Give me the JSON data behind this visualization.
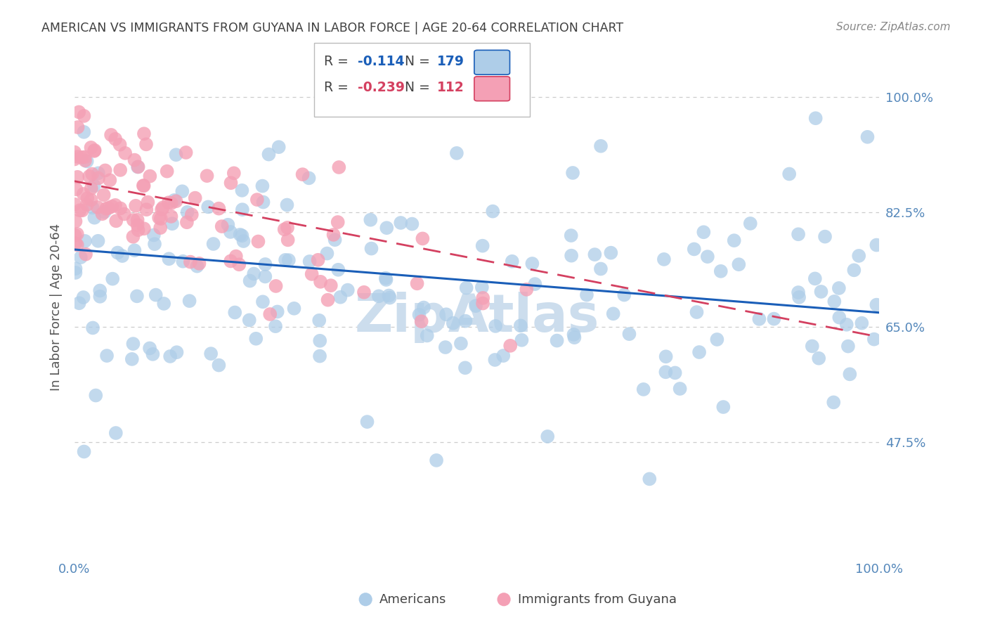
{
  "title": "AMERICAN VS IMMIGRANTS FROM GUYANA IN LABOR FORCE | AGE 20-64 CORRELATION CHART",
  "source": "Source: ZipAtlas.com",
  "ylabel": "In Labor Force | Age 20-64",
  "xlim": [
    0.0,
    1.0
  ],
  "ylim": [
    0.3,
    1.06
  ],
  "yticks": [
    0.475,
    0.65,
    0.825,
    1.0
  ],
  "ytick_labels": [
    "47.5%",
    "65.0%",
    "82.5%",
    "100.0%"
  ],
  "xtick_labels": [
    "0.0%",
    "100.0%"
  ],
  "americans_color": "#aecde8",
  "guyana_color": "#f4a0b5",
  "trend_americans_color": "#1a5eb8",
  "trend_guyana_color": "#d44060",
  "am_trend_y0": 0.768,
  "am_trend_y1": 0.672,
  "gu_trend_y0": 0.872,
  "gu_trend_y1": 0.635,
  "R_americans": "-0.114",
  "N_americans": "179",
  "R_guyana": "-0.239",
  "N_guyana": "112",
  "background_color": "#ffffff",
  "grid_color": "#cccccc",
  "watermark_text": "ZipAtlas",
  "watermark_color": "#ccdded",
  "title_color": "#404040",
  "axis_label_color": "#555555",
  "tick_color": "#5588bb",
  "source_color": "#888888",
  "legend_edge_color": "#bbbbbb"
}
